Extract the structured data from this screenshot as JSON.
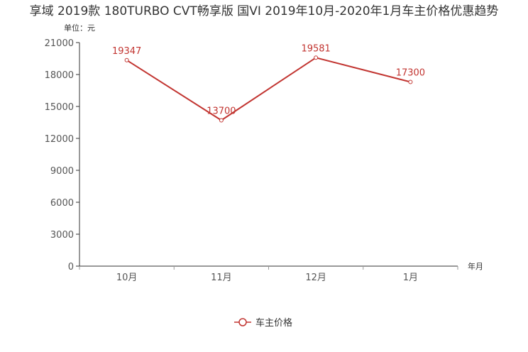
{
  "chart_data": {
    "type": "line",
    "title": "享域 2019款 180TURBO CVT畅享版 国VI 2019年10月-2020年1月车主价格优惠趋势",
    "ylabel": "单位：元",
    "xlabel": "年月",
    "categories": [
      "10月",
      "11月",
      "12月",
      "1月"
    ],
    "series": [
      {
        "name": "车主价格",
        "values": [
          19347,
          13700,
          19581,
          17300
        ]
      }
    ],
    "ylim": [
      0,
      21000
    ],
    "yticks": [
      0,
      3000,
      6000,
      9000,
      12000,
      15000,
      18000,
      21000
    ],
    "grid": false,
    "legend": "bottom-center",
    "color": "#c23531"
  }
}
